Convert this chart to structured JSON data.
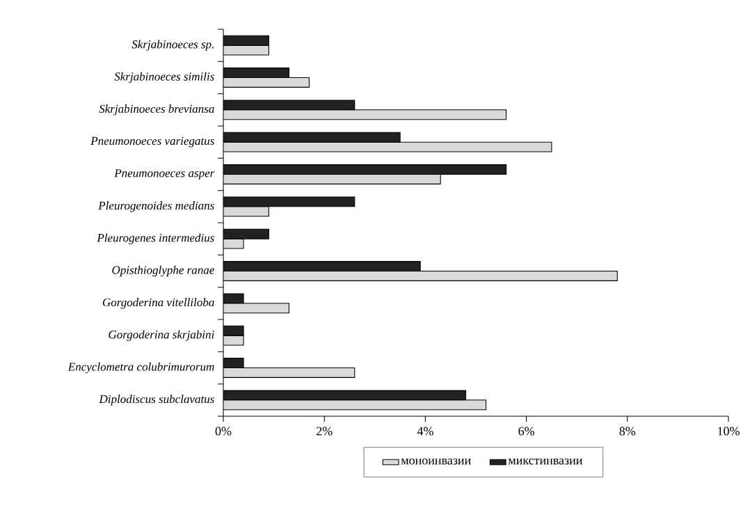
{
  "chart_data": {
    "type": "bar",
    "orientation": "horizontal",
    "categories": [
      "Skrjabinoeces sp.",
      "Skrjabinoeces similis",
      "Skrjabinoeces breviansa",
      "Pneumonoeces variegatus",
      "Pneumonoeces asper",
      "Pleurogenoides medians",
      "Pleurogenes intermedius",
      "Opisthioglyphe ranae",
      "Gorgoderina vitelliloba",
      "Gorgoderina skrjabini",
      "Encyclometra colubrimurorum",
      "Diplodiscus subclavatus"
    ],
    "series": [
      {
        "name": "моноинвазии",
        "color": "#d9d9d9",
        "values": [
          0.9,
          1.7,
          5.6,
          6.5,
          4.3,
          0.9,
          0.4,
          7.8,
          1.3,
          0.4,
          2.6,
          5.2
        ]
      },
      {
        "name": "микстинвазии",
        "color": "#222222",
        "values": [
          0.9,
          1.3,
          2.6,
          3.5,
          5.6,
          2.6,
          0.9,
          3.9,
          0.4,
          0.4,
          0.4,
          4.8
        ]
      }
    ],
    "xlim": [
      0,
      10
    ],
    "xticks": [
      {
        "value": 0,
        "label": "0%"
      },
      {
        "value": 2,
        "label": "2%"
      },
      {
        "value": 4,
        "label": "4%"
      },
      {
        "value": 6,
        "label": "6%"
      },
      {
        "value": 8,
        "label": "8%"
      },
      {
        "value": 10,
        "label": "10%"
      }
    ],
    "legend": "bottom",
    "grid": false
  }
}
